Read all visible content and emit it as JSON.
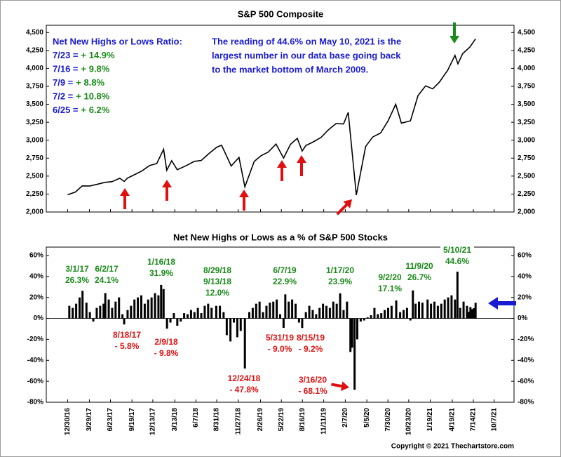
{
  "chart_data": [
    {
      "type": "line",
      "title": "S&P 500 Composite",
      "color": "#000000",
      "xlim": [
        "2016-10-04",
        "2021-12-27"
      ],
      "ylim": [
        2000,
        4600
      ],
      "yticks": [
        {
          "value": 2000,
          "label": "2,000"
        },
        {
          "value": 2250,
          "label": "2,250"
        },
        {
          "value": 2500,
          "label": "2,500"
        },
        {
          "value": 2750,
          "label": "2,750"
        },
        {
          "value": 3000,
          "label": "3,000"
        },
        {
          "value": 3250,
          "label": "3,250"
        },
        {
          "value": 3500,
          "label": "3,500"
        },
        {
          "value": 3750,
          "label": "3,750"
        },
        {
          "value": 4000,
          "label": "4,000"
        },
        {
          "value": 4250,
          "label": "4,250"
        },
        {
          "value": 4500,
          "label": "4,500"
        }
      ],
      "x": [
        "2016-12-30",
        "2017-01-31",
        "2017-02-28",
        "2017-03-31",
        "2017-04-28",
        "2017-05-31",
        "2017-06-30",
        "2017-07-31",
        "2017-08-18",
        "2017-08-31",
        "2017-09-29",
        "2017-10-31",
        "2017-11-30",
        "2017-12-29",
        "2018-01-26",
        "2018-02-08",
        "2018-02-28",
        "2018-03-23",
        "2018-04-30",
        "2018-05-31",
        "2018-06-29",
        "2018-07-31",
        "2018-08-31",
        "2018-09-20",
        "2018-10-29",
        "2018-11-30",
        "2018-12-24",
        "2019-01-31",
        "2019-02-28",
        "2019-03-29",
        "2019-04-30",
        "2019-05-31",
        "2019-06-28",
        "2019-07-26",
        "2019-08-15",
        "2019-08-30",
        "2019-09-30",
        "2019-10-31",
        "2019-11-29",
        "2019-12-31",
        "2020-01-31",
        "2020-02-19",
        "2020-03-23",
        "2020-04-30",
        "2020-05-29",
        "2020-06-30",
        "2020-07-31",
        "2020-08-31",
        "2020-09-23",
        "2020-10-30",
        "2020-11-30",
        "2020-12-31",
        "2021-01-29",
        "2021-02-26",
        "2021-03-31",
        "2021-04-30",
        "2021-05-12",
        "2021-05-31",
        "2021-06-30",
        "2021-07-23"
      ],
      "values": [
        2239,
        2279,
        2364,
        2363,
        2384,
        2412,
        2423,
        2470,
        2425,
        2471,
        2519,
        2575,
        2648,
        2674,
        2873,
        2581,
        2714,
        2588,
        2648,
        2705,
        2718,
        2816,
        2902,
        2930,
        2641,
        2760,
        2351,
        2704,
        2784,
        2834,
        2946,
        2752,
        2942,
        3025,
        2848,
        2926,
        2977,
        3038,
        3141,
        3231,
        3226,
        3386,
        2237,
        2912,
        3044,
        3100,
        3271,
        3500,
        3237,
        3270,
        3622,
        3756,
        3714,
        3811,
        3973,
        4181,
        4063,
        4204,
        4297,
        4411
      ],
      "ratio_title": "Net New Highs or Lows Ratio:",
      "ratio_lines": [
        {
          "date": "7/23 =",
          "value": "+ 14.9%"
        },
        {
          "date": "7/16 =",
          "value": "+ 9.8%"
        },
        {
          "date": "7/9 =",
          "value": "+ 8.8%"
        },
        {
          "date": "7/2 =",
          "value": "+ 10.8%"
        },
        {
          "date": "6/25 =",
          "value": "+ 6.2%"
        }
      ],
      "note": [
        "The reading of 44.6% on May 10, 2021 is the",
        "largest number in our data base going back",
        "to the market bottom of March 2009."
      ]
    },
    {
      "type": "bar",
      "title": "Net New Highs or Lows as a % of S&P 500 Stocks",
      "color": "#000000",
      "xlim": [
        "2016-10-04",
        "2021-12-27"
      ],
      "ylim": [
        -80,
        68
      ],
      "yticks": [
        {
          "value": -80,
          "label": "-80%"
        },
        {
          "value": -60,
          "label": "-60%"
        },
        {
          "value": -40,
          "label": "-40%"
        },
        {
          "value": -20,
          "label": "-20%"
        },
        {
          "value": 0,
          "label": "0%"
        },
        {
          "value": 20,
          "label": "20%"
        },
        {
          "value": 40,
          "label": "40%"
        },
        {
          "value": 60,
          "label": "60%"
        }
      ],
      "xticks": [
        {
          "value": "2016-12-30",
          "label": "12/30/16"
        },
        {
          "value": "2017-03-29",
          "label": "3/29/17"
        },
        {
          "value": "2017-06-23",
          "label": "6/23/17"
        },
        {
          "value": "2017-09-19",
          "label": "9/19/17"
        },
        {
          "value": "2017-12-13",
          "label": "12/13/17"
        },
        {
          "value": "2018-03-13",
          "label": "3/13/18"
        },
        {
          "value": "2018-06-07",
          "label": "6/7/18"
        },
        {
          "value": "2018-08-31",
          "label": "8/31/18"
        },
        {
          "value": "2018-11-27",
          "label": "11/27/18"
        },
        {
          "value": "2019-02-26",
          "label": "2/26/19"
        },
        {
          "value": "2019-05-22",
          "label": "5/22/19"
        },
        {
          "value": "2019-08-16",
          "label": "8/16/19"
        },
        {
          "value": "2019-11-11",
          "label": "11/11/19"
        },
        {
          "value": "2020-02-07",
          "label": "2/7/20"
        },
        {
          "value": "2020-05-05",
          "label": "5/5/20"
        },
        {
          "value": "2020-07-30",
          "label": "7/30/20"
        },
        {
          "value": "2020-10-23",
          "label": "10/23/20"
        },
        {
          "value": "2021-01-19",
          "label": "1/19/21"
        },
        {
          "value": "2021-04-19",
          "label": "4/19/21"
        },
        {
          "value": "2021-07-14",
          "label": "7/14/21"
        },
        {
          "value": "2021-10-07",
          "label": "10/7/21"
        }
      ],
      "x": [
        "2017-01-06",
        "2017-01-20",
        "2017-02-03",
        "2017-02-17",
        "2017-03-01",
        "2017-03-17",
        "2017-03-31",
        "2017-04-14",
        "2017-04-28",
        "2017-05-12",
        "2017-05-26",
        "2017-06-02",
        "2017-06-16",
        "2017-06-30",
        "2017-07-14",
        "2017-07-28",
        "2017-08-11",
        "2017-08-18",
        "2017-09-01",
        "2017-09-15",
        "2017-09-29",
        "2017-10-13",
        "2017-10-27",
        "2017-11-10",
        "2017-11-24",
        "2017-12-08",
        "2017-12-22",
        "2018-01-05",
        "2018-01-16",
        "2018-01-26",
        "2018-02-09",
        "2018-02-23",
        "2018-03-09",
        "2018-03-23",
        "2018-04-06",
        "2018-04-20",
        "2018-05-04",
        "2018-05-18",
        "2018-06-01",
        "2018-06-15",
        "2018-06-29",
        "2018-07-13",
        "2018-07-27",
        "2018-08-10",
        "2018-08-29",
        "2018-09-13",
        "2018-09-28",
        "2018-10-11",
        "2018-10-26",
        "2018-11-09",
        "2018-11-23",
        "2018-12-07",
        "2018-12-24",
        "2019-01-11",
        "2019-01-25",
        "2019-02-08",
        "2019-02-22",
        "2019-03-08",
        "2019-03-22",
        "2019-04-05",
        "2019-04-19",
        "2019-05-03",
        "2019-05-17",
        "2019-05-31",
        "2019-06-07",
        "2019-06-21",
        "2019-07-05",
        "2019-07-19",
        "2019-08-02",
        "2019-08-15",
        "2019-08-30",
        "2019-09-13",
        "2019-09-27",
        "2019-10-11",
        "2019-10-25",
        "2019-11-08",
        "2019-11-22",
        "2019-12-06",
        "2019-12-20",
        "2020-01-03",
        "2020-01-17",
        "2020-01-31",
        "2020-02-14",
        "2020-02-28",
        "2020-03-06",
        "2020-03-16",
        "2020-03-27",
        "2020-04-10",
        "2020-04-24",
        "2020-05-08",
        "2020-05-22",
        "2020-06-05",
        "2020-06-19",
        "2020-07-03",
        "2020-07-17",
        "2020-07-31",
        "2020-08-14",
        "2020-09-02",
        "2020-09-18",
        "2020-10-02",
        "2020-10-16",
        "2020-10-30",
        "2020-11-09",
        "2020-11-20",
        "2020-12-04",
        "2020-12-18",
        "2021-01-08",
        "2021-01-22",
        "2021-02-05",
        "2021-02-19",
        "2021-03-05",
        "2021-03-19",
        "2021-04-02",
        "2021-04-16",
        "2021-04-30",
        "2021-05-10",
        "2021-05-21",
        "2021-06-04",
        "2021-06-18",
        "2021-06-25",
        "2021-07-02",
        "2021-07-09",
        "2021-07-16",
        "2021-07-23"
      ],
      "values": [
        12,
        10,
        14,
        20,
        26.3,
        15,
        6,
        -3,
        10,
        12,
        14,
        24.1,
        18,
        10,
        16,
        20,
        4,
        -5.8,
        8,
        12,
        18,
        20,
        22,
        14,
        18,
        20,
        24,
        22,
        31.9,
        28,
        -9.8,
        -4,
        5,
        -7,
        -3,
        5,
        4,
        8,
        6,
        10,
        5,
        12,
        14,
        10,
        12,
        12.0,
        6,
        -16,
        -22,
        -4,
        -18,
        -12,
        -47.8,
        6,
        10,
        14,
        16,
        6,
        12,
        15,
        16,
        18,
        4,
        -9.0,
        22.9,
        16,
        18,
        14,
        -4,
        -9.2,
        6,
        12,
        8,
        4,
        10,
        14,
        12,
        10,
        16,
        14,
        23.9,
        8,
        16,
        -32,
        -28,
        -68.1,
        -20,
        -3,
        -2,
        1,
        3,
        10,
        4,
        5,
        8,
        10,
        12,
        17.1,
        6,
        8,
        10,
        -2,
        26.7,
        14,
        16,
        15,
        18,
        14,
        16,
        12,
        14,
        18,
        20,
        22,
        18,
        44.6,
        10,
        16,
        12,
        6.2,
        10.8,
        8.8,
        9.8,
        14.9
      ],
      "highs": [
        [
          "3/1/17",
          "26.3%"
        ],
        [
          "6/2/17",
          "24.1%"
        ],
        [
          "1/16/18",
          "31.9%"
        ],
        [
          "8/29/18",
          "9/13/18",
          "12.0%"
        ],
        [
          "6/7/19",
          "22.9%"
        ],
        [
          "1/17/20",
          "23.9%"
        ],
        [
          "9/2/20",
          "17.1%"
        ],
        [
          "11/9/20",
          "26.7%"
        ],
        [
          "5/10/21",
          "44.6%"
        ]
      ],
      "lows": [
        [
          "8/18/17",
          "- 5.8%"
        ],
        [
          "2/9/18",
          "- 9.8%"
        ],
        [
          "5/31/19",
          "- 9.0%"
        ],
        [
          "8/15/19",
          "- 9.2%"
        ],
        [
          "12/24/18",
          "- 47.8%"
        ],
        [
          "3/16/20",
          "- 68.1%"
        ]
      ],
      "copyright": "Copyright © 2021 Thechartstore.com"
    }
  ]
}
